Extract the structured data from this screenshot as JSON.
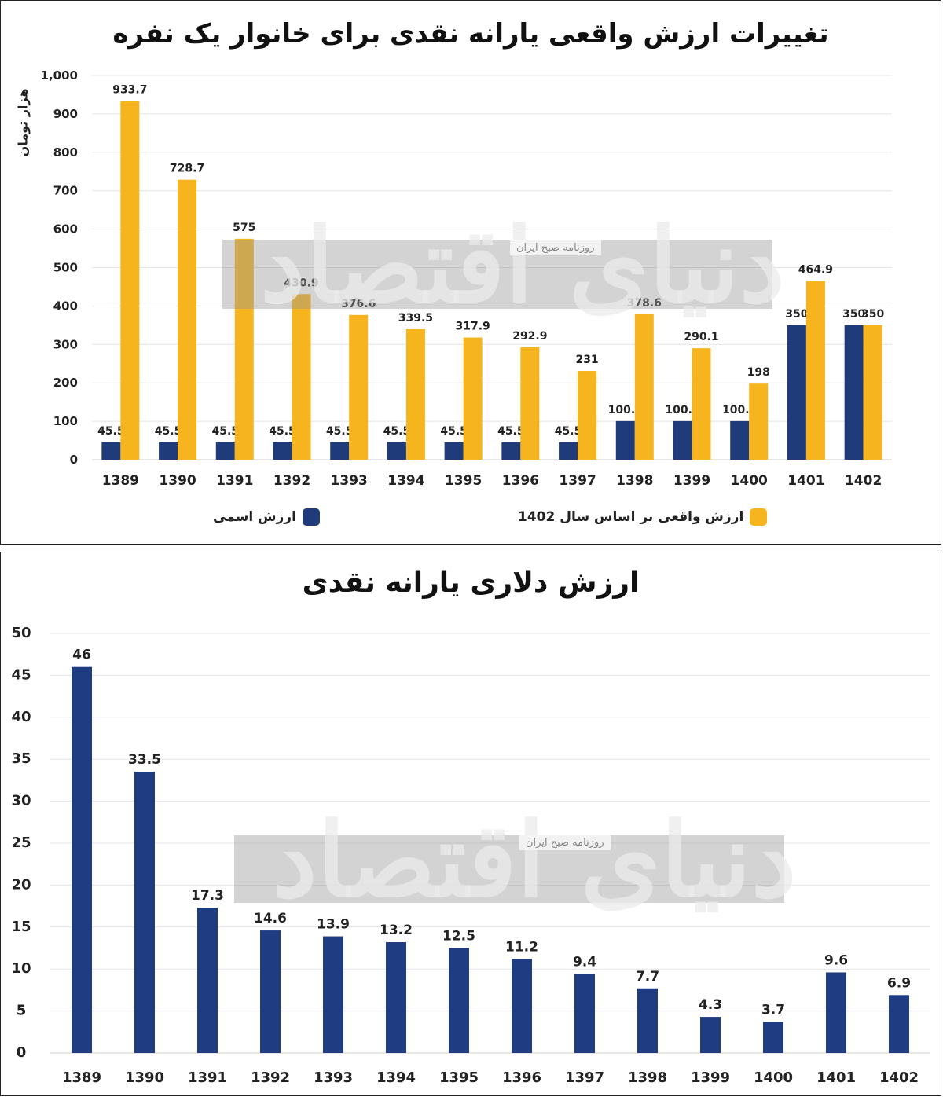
{
  "chart_data": [
    {
      "type": "bar",
      "title": "تغییرات ارزش واقعی یارانه نقدی برای خانوار یک نفره",
      "ylabel": "هزار تومان",
      "ylim": [
        0,
        1000
      ],
      "yticks": [
        "0",
        "100",
        "200",
        "300",
        "400",
        "500",
        "600",
        "700",
        "800",
        "900",
        "1,000"
      ],
      "categories": [
        "1389",
        "1390",
        "1391",
        "1392",
        "1393",
        "1394",
        "1395",
        "1396",
        "1397",
        "1398",
        "1399",
        "1400",
        "1401",
        "1402"
      ],
      "series": [
        {
          "name": "ارزش اسمی",
          "color": "#1f3b7a",
          "values": [
            45.5,
            45.5,
            45.5,
            45.5,
            45.5,
            45.5,
            45.5,
            45.5,
            45.5,
            100.5,
            100.5,
            100.5,
            350,
            350
          ],
          "labels": [
            "45.5",
            "45.5",
            "45.5",
            "45.5",
            "45.5",
            "45.5",
            "45.5",
            "45.5",
            "45.5",
            "100.5",
            "100.5",
            "100.5",
            "350",
            "350"
          ]
        },
        {
          "name": "ارزش واقعی بر اساس سال 1402",
          "color": "#f6b51e",
          "values": [
            933.7,
            728.7,
            575,
            430.9,
            376.6,
            339.5,
            317.9,
            292.9,
            231,
            378.6,
            290.1,
            198,
            464.9,
            350
          ],
          "labels": [
            "933.7",
            "728.7",
            "575",
            "430.9",
            "376.6",
            "339.5",
            "317.9",
            "292.9",
            "231",
            "378.6",
            "290.1",
            "198",
            "464.9",
            "350"
          ]
        }
      ],
      "grid": true,
      "legend_position": "bottom"
    },
    {
      "type": "bar",
      "title": "ارزش دلاری یارانه نقدی",
      "ylim": [
        0,
        50
      ],
      "yticks": [
        "0",
        "5",
        "10",
        "15",
        "20",
        "25",
        "30",
        "35",
        "40",
        "45",
        "50"
      ],
      "categories": [
        "1389",
        "1390",
        "1391",
        "1392",
        "1393",
        "1394",
        "1395",
        "1396",
        "1397",
        "1398",
        "1399",
        "1400",
        "1401",
        "1402"
      ],
      "series": [
        {
          "color": "#1f3b82",
          "values": [
            46,
            33.5,
            17.3,
            14.6,
            13.9,
            13.2,
            12.5,
            11.2,
            9.4,
            7.7,
            4.3,
            3.7,
            9.6,
            6.9
          ],
          "labels": [
            "46",
            "33.5",
            "17.3",
            "14.6",
            "13.9",
            "13.2",
            "12.5",
            "11.2",
            "9.4",
            "7.7",
            "4.3",
            "3.7",
            "9.6",
            "6.9"
          ]
        }
      ],
      "grid": true
    }
  ],
  "watermark": {
    "logo_text": "دنیای اقتصاد",
    "tag": "روزنامه صبح ایران"
  }
}
